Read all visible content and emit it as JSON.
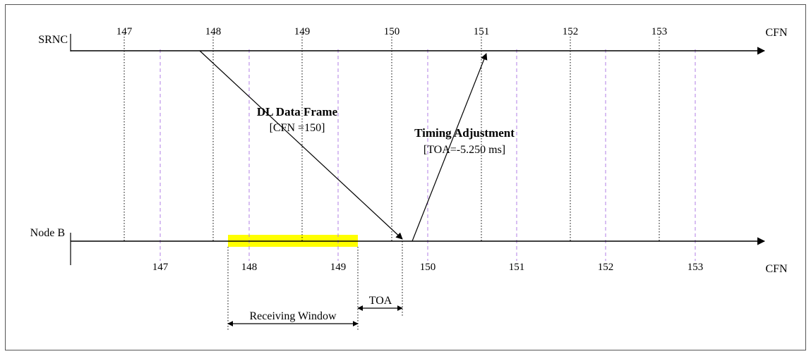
{
  "srnc_label": "SRNC",
  "nodeb_label": "Node B",
  "cfn_label_top": "CFN",
  "cfn_label_bottom": "CFN",
  "top_ticks": [
    "147",
    "148",
    "149",
    "150",
    "151",
    "152",
    "153"
  ],
  "bottom_ticks": [
    "147",
    "148",
    "149",
    "150",
    "151",
    "152",
    "153"
  ],
  "dl_frame_title": "DL Data Frame",
  "dl_frame_detail": "[CFN =150]",
  "timing_adj_title": "Timing Adjustment",
  "timing_adj_detail": "[TOA=-5.250 ms]",
  "toa_label": "TOA",
  "receiving_window_label": "Receiving Window",
  "colors": {
    "receiving_window_highlight": "#ffff00",
    "frame_boundary_dashed": "#b27fe5",
    "line": "#000000"
  }
}
